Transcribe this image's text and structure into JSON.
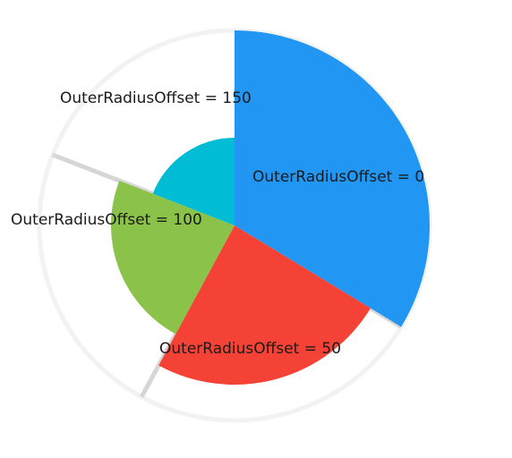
{
  "chart_data": {
    "type": "pie",
    "title": "",
    "background_ring_color": "#f2f2f2",
    "separator_color": "#d6d6d6",
    "slices": [
      {
        "label": "OuterRadiusOffset = 0",
        "outer_radius_offset": 0,
        "value": 33.7,
        "color": "#2196F3"
      },
      {
        "label": "OuterRadiusOffset = 50",
        "outer_radius_offset": 50,
        "value": 24.2,
        "color": "#F44336"
      },
      {
        "label": "OuterRadiusOffset = 100",
        "outer_radius_offset": 100,
        "value": 23.0,
        "color": "#8BC34A"
      },
      {
        "label": "OuterRadiusOffset = 150",
        "outer_radius_offset": 150,
        "value": 19.1,
        "color": "#00BCD4"
      }
    ]
  }
}
